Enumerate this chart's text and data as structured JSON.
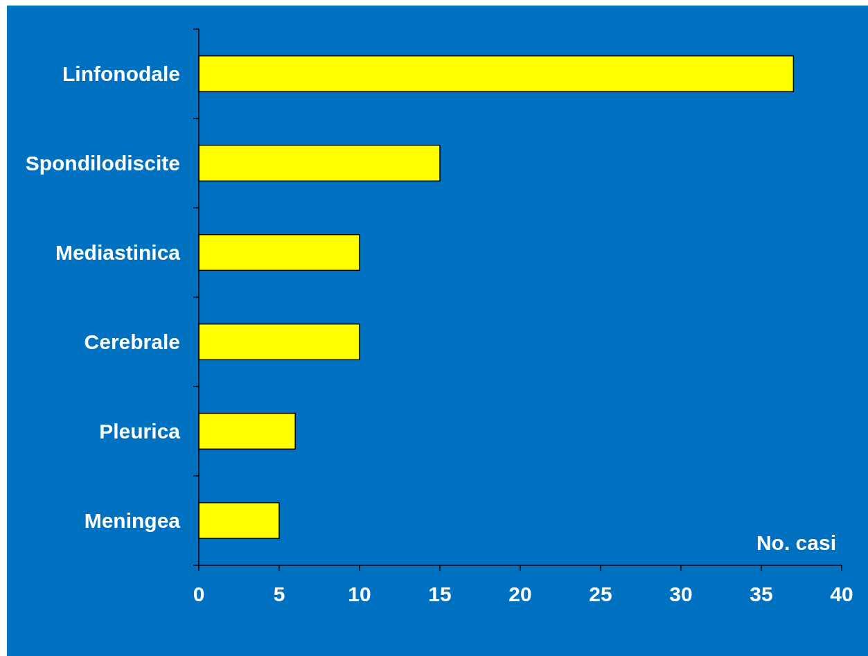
{
  "chart_data": {
    "type": "bar",
    "orientation": "horizontal",
    "xlabel": "No. casi",
    "categories": [
      "Linfonodale",
      "Spondilodiscite",
      "Mediastinica",
      "Cerebrale",
      "Pleurica",
      "Meningea"
    ],
    "values": [
      37,
      15,
      10,
      10,
      6,
      5
    ],
    "color": "#ffff00",
    "xlim": [
      0,
      40
    ],
    "xticks": [
      0,
      5,
      10,
      15,
      20,
      25,
      30,
      35,
      40
    ],
    "grid": false
  }
}
